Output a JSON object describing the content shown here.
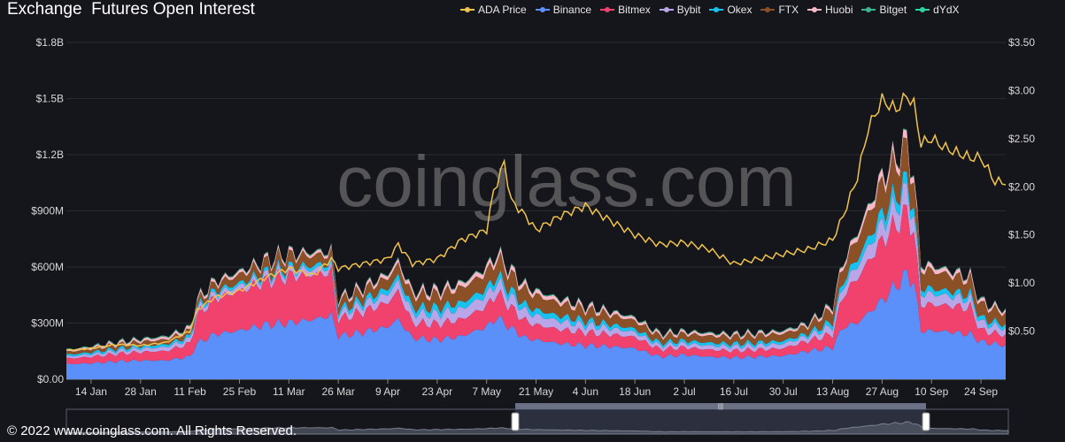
{
  "title": "Exchange  Futures Open Interest",
  "watermark": "coinglass.com",
  "footer": "© 2022 www.coinglass.com. All Rights Reserved.",
  "legend": [
    {
      "name": "ADA Price",
      "color": "#f0c24e"
    },
    {
      "name": "Binance",
      "color": "#5b8ff9"
    },
    {
      "name": "Bitmex",
      "color": "#f0426d"
    },
    {
      "name": "Bybit",
      "color": "#b9a6e8"
    },
    {
      "name": "Okex",
      "color": "#17c2ee"
    },
    {
      "name": "FTX",
      "color": "#8c5027"
    },
    {
      "name": "Huobi",
      "color": "#f7b8c7"
    },
    {
      "name": "Bitget",
      "color": "#3cb48f"
    },
    {
      "name": "dYdX",
      "color": "#2ad4a3"
    }
  ],
  "chart_data": {
    "type": "area",
    "y_left_ticks": [
      "$0.00",
      "$300M",
      "$600M",
      "$900M",
      "$1.2B",
      "$1.5B",
      "$1.8B"
    ],
    "y_right_ticks": [
      "$0.50",
      "$1.00",
      "$1.50",
      "$2.00",
      "$2.50",
      "$3.00",
      "$3.50"
    ],
    "x_ticks": [
      "14 Jan",
      "28 Jan",
      "11 Feb",
      "25 Feb",
      "11 Mar",
      "26 Mar",
      "9 Apr",
      "23 Apr",
      "7 May",
      "21 May",
      "4 Jun",
      "18 Jun",
      "2 Jul",
      "16 Jul",
      "30 Jul",
      "13 Aug",
      "27 Aug",
      "10 Sep",
      "24 Sep"
    ],
    "ylim_left": [
      0,
      1800
    ],
    "ylim_right": [
      0,
      3.5
    ],
    "units_left": "M USD",
    "x_start": "2021-01-07",
    "x_end": "2021-09-30",
    "series": [
      {
        "name": "Binance",
        "values": [
          [
            0,
            80
          ],
          [
            7,
            85
          ],
          [
            14,
            95
          ],
          [
            21,
            100
          ],
          [
            28,
            100
          ],
          [
            35,
            120
          ],
          [
            37,
            190
          ],
          [
            42,
            240
          ],
          [
            49,
            260
          ],
          [
            56,
            290
          ],
          [
            63,
            300
          ],
          [
            70,
            320
          ],
          [
            75,
            340
          ],
          [
            77,
            230
          ],
          [
            84,
            250
          ],
          [
            91,
            280
          ],
          [
            94,
            320
          ],
          [
            98,
            220
          ],
          [
            105,
            210
          ],
          [
            112,
            230
          ],
          [
            119,
            280
          ],
          [
            122,
            330
          ],
          [
            126,
            270
          ],
          [
            130,
            220
          ],
          [
            133,
            210
          ],
          [
            140,
            190
          ],
          [
            147,
            180
          ],
          [
            154,
            175
          ],
          [
            161,
            165
          ],
          [
            168,
            120
          ],
          [
            175,
            130
          ],
          [
            182,
            120
          ],
          [
            189,
            115
          ],
          [
            196,
            120
          ],
          [
            203,
            125
          ],
          [
            210,
            150
          ],
          [
            217,
            170
          ],
          [
            220,
            280
          ],
          [
            224,
            300
          ],
          [
            231,
            420
          ],
          [
            238,
            560
          ],
          [
            240,
            520
          ],
          [
            242,
            260
          ],
          [
            249,
            255
          ],
          [
            256,
            240
          ],
          [
            259,
            200
          ],
          [
            266,
            180
          ]
        ]
      },
      {
        "name": "Bitmex",
        "values": [
          [
            0,
            30
          ],
          [
            7,
            35
          ],
          [
            14,
            40
          ],
          [
            21,
            45
          ],
          [
            28,
            50
          ],
          [
            35,
            70
          ],
          [
            37,
            150
          ],
          [
            42,
            190
          ],
          [
            49,
            210
          ],
          [
            56,
            230
          ],
          [
            63,
            250
          ],
          [
            70,
            240
          ],
          [
            75,
            230
          ],
          [
            77,
            90
          ],
          [
            84,
            110
          ],
          [
            91,
            130
          ],
          [
            94,
            150
          ],
          [
            98,
            80
          ],
          [
            105,
            85
          ],
          [
            112,
            90
          ],
          [
            119,
            110
          ],
          [
            122,
            130
          ],
          [
            126,
            110
          ],
          [
            130,
            90
          ],
          [
            133,
            80
          ],
          [
            140,
            75
          ],
          [
            147,
            70
          ],
          [
            154,
            65
          ],
          [
            161,
            60
          ],
          [
            168,
            40
          ],
          [
            175,
            40
          ],
          [
            182,
            38
          ],
          [
            189,
            37
          ],
          [
            196,
            38
          ],
          [
            203,
            40
          ],
          [
            210,
            55
          ],
          [
            217,
            70
          ],
          [
            220,
            170
          ],
          [
            224,
            240
          ],
          [
            231,
            320
          ],
          [
            238,
            330
          ],
          [
            240,
            270
          ],
          [
            242,
            140
          ],
          [
            249,
            140
          ],
          [
            256,
            140
          ],
          [
            259,
            60
          ],
          [
            266,
            55
          ]
        ]
      },
      {
        "name": "Bybit",
        "values": [
          [
            0,
            10
          ],
          [
            37,
            25
          ],
          [
            77,
            30
          ],
          [
            94,
            50
          ],
          [
            122,
            60
          ],
          [
            168,
            20
          ],
          [
            210,
            25
          ],
          [
            220,
            50
          ],
          [
            231,
            90
          ],
          [
            238,
            110
          ],
          [
            242,
            60
          ],
          [
            266,
            35
          ]
        ]
      },
      {
        "name": "Okex",
        "values": [
          [
            0,
            10
          ],
          [
            37,
            15
          ],
          [
            77,
            20
          ],
          [
            94,
            30
          ],
          [
            122,
            35
          ],
          [
            168,
            15
          ],
          [
            210,
            15
          ],
          [
            220,
            30
          ],
          [
            231,
            55
          ],
          [
            238,
            60
          ],
          [
            242,
            30
          ],
          [
            266,
            20
          ]
        ]
      },
      {
        "name": "FTX",
        "values": [
          [
            0,
            15
          ],
          [
            37,
            30
          ],
          [
            63,
            60
          ],
          [
            77,
            45
          ],
          [
            94,
            60
          ],
          [
            122,
            90
          ],
          [
            168,
            35
          ],
          [
            210,
            40
          ],
          [
            220,
            80
          ],
          [
            231,
            160
          ],
          [
            238,
            170
          ],
          [
            242,
            100
          ],
          [
            266,
            60
          ]
        ]
      },
      {
        "name": "Huobi",
        "values": [
          [
            0,
            8
          ],
          [
            37,
            15
          ],
          [
            77,
            15
          ],
          [
            94,
            20
          ],
          [
            122,
            25
          ],
          [
            168,
            12
          ],
          [
            210,
            12
          ],
          [
            220,
            20
          ],
          [
            231,
            40
          ],
          [
            238,
            40
          ],
          [
            242,
            25
          ],
          [
            266,
            15
          ]
        ]
      },
      {
        "name": "Bitget",
        "values": [
          [
            0,
            3
          ],
          [
            266,
            3
          ]
        ]
      },
      {
        "name": "dYdX",
        "values": [
          [
            0,
            2
          ],
          [
            266,
            2
          ]
        ]
      },
      {
        "name": "ADA Price",
        "axis": "right",
        "values": [
          [
            0,
            0.3
          ],
          [
            7,
            0.32
          ],
          [
            14,
            0.36
          ],
          [
            21,
            0.35
          ],
          [
            28,
            0.38
          ],
          [
            35,
            0.5
          ],
          [
            37,
            0.72
          ],
          [
            42,
            0.85
          ],
          [
            49,
            0.92
          ],
          [
            56,
            1.05
          ],
          [
            63,
            1.15
          ],
          [
            70,
            1.08
          ],
          [
            75,
            1.25
          ],
          [
            77,
            1.15
          ],
          [
            84,
            1.2
          ],
          [
            91,
            1.25
          ],
          [
            94,
            1.4
          ],
          [
            98,
            1.2
          ],
          [
            105,
            1.25
          ],
          [
            112,
            1.45
          ],
          [
            119,
            1.55
          ],
          [
            121,
            1.95
          ],
          [
            124,
            2.25
          ],
          [
            126,
            1.85
          ],
          [
            130,
            1.7
          ],
          [
            133,
            1.55
          ],
          [
            140,
            1.7
          ],
          [
            147,
            1.8
          ],
          [
            154,
            1.65
          ],
          [
            161,
            1.5
          ],
          [
            168,
            1.4
          ],
          [
            175,
            1.42
          ],
          [
            182,
            1.35
          ],
          [
            189,
            1.2
          ],
          [
            196,
            1.25
          ],
          [
            203,
            1.3
          ],
          [
            210,
            1.35
          ],
          [
            217,
            1.45
          ],
          [
            220,
            1.7
          ],
          [
            224,
            2.1
          ],
          [
            227,
            2.6
          ],
          [
            231,
            2.9
          ],
          [
            235,
            2.8
          ],
          [
            238,
            2.95
          ],
          [
            240,
            2.85
          ],
          [
            242,
            2.45
          ],
          [
            245,
            2.5
          ],
          [
            249,
            2.4
          ],
          [
            256,
            2.3
          ],
          [
            259,
            2.3
          ],
          [
            263,
            2.05
          ],
          [
            266,
            2.05
          ]
        ]
      }
    ]
  }
}
